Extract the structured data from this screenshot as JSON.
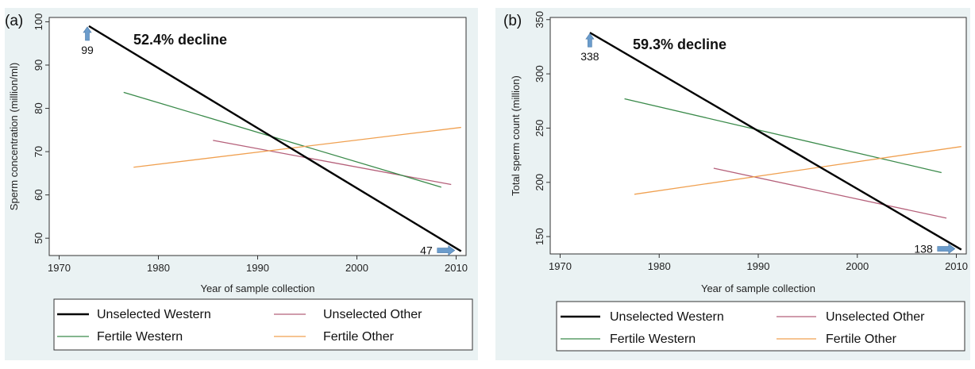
{
  "colors": {
    "unselected_western": "#000000",
    "unselected_other": "#b5607a",
    "fertile_western": "#3a8a4a",
    "fertile_other": "#f0a050",
    "arrow": "#6b9ccc",
    "panel_bg": "#eaf2f3"
  },
  "legend": [
    {
      "name": "Unselected Western",
      "color": "#000000"
    },
    {
      "name": "Unselected Other",
      "color": "#b5607a"
    },
    {
      "name": "Fertile Western",
      "color": "#3a8a4a"
    },
    {
      "name": "Fertile Other",
      "color": "#f0a050"
    }
  ],
  "chart_data": [
    {
      "type": "line",
      "panel_label": "(a)",
      "xlabel": "Year of sample collection",
      "ylabel": "Sperm concentration (million/ml)",
      "xlim": [
        1969,
        2011
      ],
      "ylim": [
        46,
        101
      ],
      "xticks": [
        1970,
        1980,
        1990,
        2000,
        2010
      ],
      "yticks": [
        50,
        60,
        70,
        80,
        90,
        100
      ],
      "series": [
        {
          "name": "Unselected Western",
          "x": [
            1973,
            2010.5
          ],
          "y": [
            99,
            47
          ]
        },
        {
          "name": "Unselected Other",
          "x": [
            1985.5,
            2009.5
          ],
          "y": [
            72.6,
            62.4
          ]
        },
        {
          "name": "Fertile Western",
          "x": [
            1976.5,
            2008.5
          ],
          "y": [
            83.7,
            61.8
          ]
        },
        {
          "name": "Fertile Other",
          "x": [
            1977.5,
            2010.5
          ],
          "y": [
            66.4,
            75.6
          ]
        }
      ],
      "annotations": {
        "decline": "52.4% decline",
        "start_value": "99",
        "end_value": "47"
      }
    },
    {
      "type": "line",
      "panel_label": "(b)",
      "xlabel": "Year of sample collection",
      "ylabel": "Total sperm count (million)",
      "xlim": [
        1969,
        2011
      ],
      "ylim": [
        134,
        352
      ],
      "xticks": [
        1970,
        1980,
        1990,
        2000,
        2010
      ],
      "yticks": [
        150,
        200,
        250,
        300,
        350
      ],
      "series": [
        {
          "name": "Unselected Western",
          "x": [
            1973,
            2010.5
          ],
          "y": [
            338,
            138
          ]
        },
        {
          "name": "Unselected Other",
          "x": [
            1985.5,
            2009
          ],
          "y": [
            213,
            167
          ]
        },
        {
          "name": "Fertile Western",
          "x": [
            1976.5,
            2008.5
          ],
          "y": [
            277,
            209
          ]
        },
        {
          "name": "Fertile Other",
          "x": [
            1977.5,
            2010.5
          ],
          "y": [
            189,
            233
          ]
        }
      ],
      "annotations": {
        "decline": "59.3% decline",
        "start_value": "338",
        "end_value": "138"
      }
    }
  ]
}
